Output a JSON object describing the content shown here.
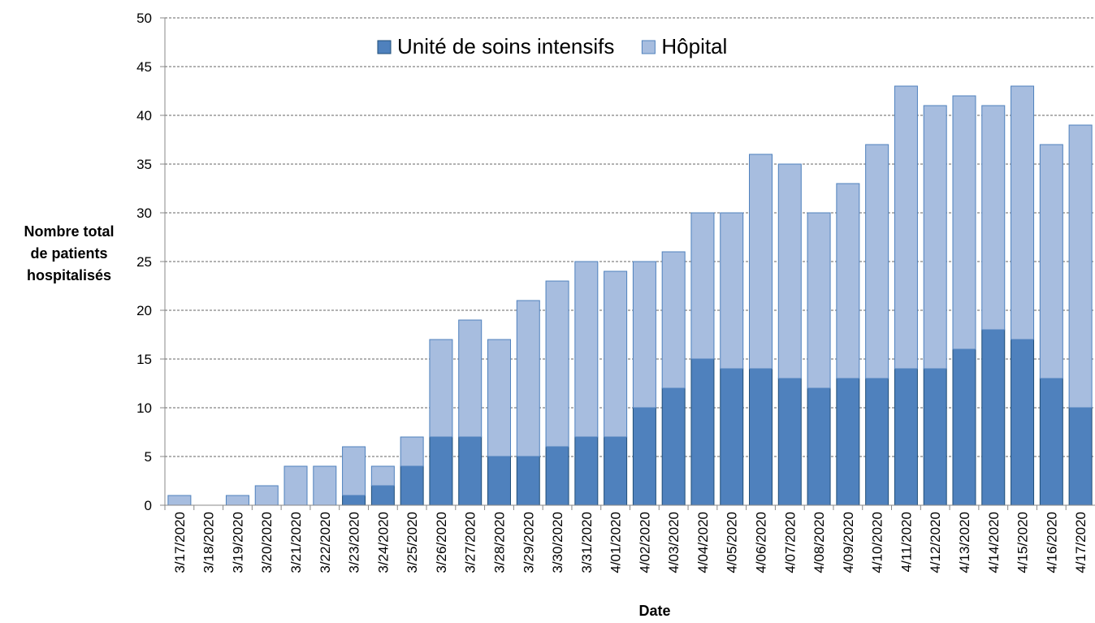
{
  "chart_data": {
    "type": "stacked_bar",
    "y_label": [
      "Nombre total",
      "de patients",
      "hospitalisés"
    ],
    "x_label": "Date",
    "categories": [
      "3/17/2020",
      "3/18/2020",
      "3/19/2020",
      "3/20/2020",
      "3/21/2020",
      "3/22/2020",
      "3/23/2020",
      "3/24/2020",
      "3/25/2020",
      "3/26/2020",
      "3/27/2020",
      "3/28/2020",
      "3/29/2020",
      "3/30/2020",
      "3/31/2020",
      "4/01/2020",
      "4/02/2020",
      "4/03/2020",
      "4/04/2020",
      "4/05/2020",
      "4/06/2020",
      "4/07/2020",
      "4/08/2020",
      "4/09/2020",
      "4/10/2020",
      "4/11/2020",
      "4/12/2020",
      "4/13/2020",
      "4/14/2020",
      "4/15/2020",
      "4/16/2020",
      "4/17/2020"
    ],
    "series": [
      {
        "name": "Unité de soins intensifs",
        "color": "#4f81bd",
        "edge": "#1f4e79",
        "values": [
          0,
          0,
          0,
          0,
          0,
          0,
          1,
          2,
          4,
          7,
          7,
          5,
          5,
          6,
          7,
          7,
          10,
          12,
          15,
          14,
          14,
          13,
          12,
          13,
          13,
          14,
          14,
          16,
          18,
          17,
          13,
          10
        ]
      },
      {
        "name": "Hôpital",
        "color": "#a7bddf",
        "edge": "#4f81bd",
        "values": [
          1,
          0,
          1,
          2,
          4,
          4,
          5,
          2,
          3,
          10,
          12,
          12,
          16,
          17,
          18,
          17,
          15,
          14,
          15,
          16,
          22,
          22,
          18,
          20,
          24,
          29,
          27,
          26,
          23,
          26,
          24,
          29
        ]
      }
    ],
    "ylim": [
      0,
      50
    ],
    "yticks": [
      0,
      5,
      10,
      15,
      20,
      25,
      30,
      35,
      40,
      45,
      50
    ],
    "grid": true
  }
}
